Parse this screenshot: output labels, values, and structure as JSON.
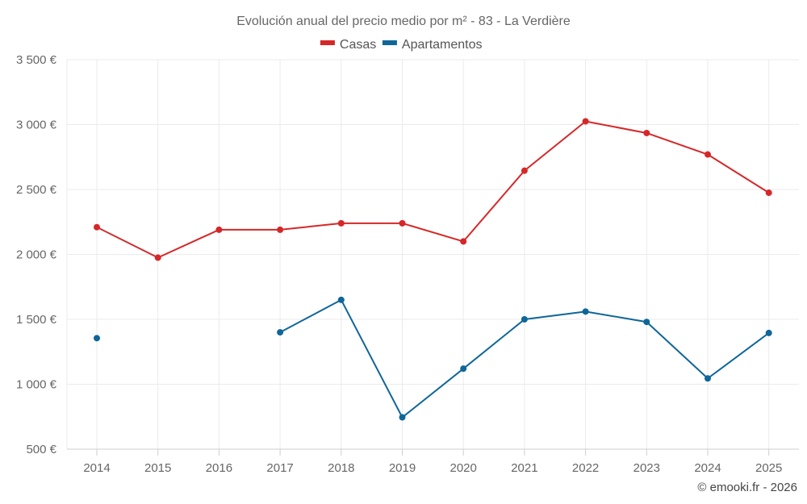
{
  "chart_data": {
    "type": "line",
    "title": "Evolución anual del precio medio por m² - 83 - La Verdière",
    "credit": "© emooki.fr - 2026",
    "categories": [
      "2014",
      "2015",
      "2016",
      "2017",
      "2018",
      "2019",
      "2020",
      "2021",
      "2022",
      "2023",
      "2024",
      "2025"
    ],
    "ylim": [
      500,
      3500
    ],
    "yticks": [
      {
        "value": 500,
        "label": "500 €"
      },
      {
        "value": 1000,
        "label": "1 000 €"
      },
      {
        "value": 1500,
        "label": "1 500 €"
      },
      {
        "value": 2000,
        "label": "2 000 €"
      },
      {
        "value": 2500,
        "label": "2 500 €"
      },
      {
        "value": 3000,
        "label": "3 000 €"
      },
      {
        "value": 3500,
        "label": "3 500 €"
      }
    ],
    "legend_position": "top-center",
    "grid": true,
    "series": [
      {
        "name": "Casas",
        "color": "#d62728",
        "values": [
          2210,
          1975,
          2190,
          2190,
          2240,
          2240,
          2100,
          2645,
          3025,
          2935,
          2770,
          2475
        ]
      },
      {
        "name": "Apartamentos",
        "color": "#0f6699",
        "values": [
          1355,
          null,
          null,
          1400,
          1650,
          745,
          1120,
          1500,
          1560,
          1480,
          1045,
          1395
        ]
      }
    ]
  }
}
